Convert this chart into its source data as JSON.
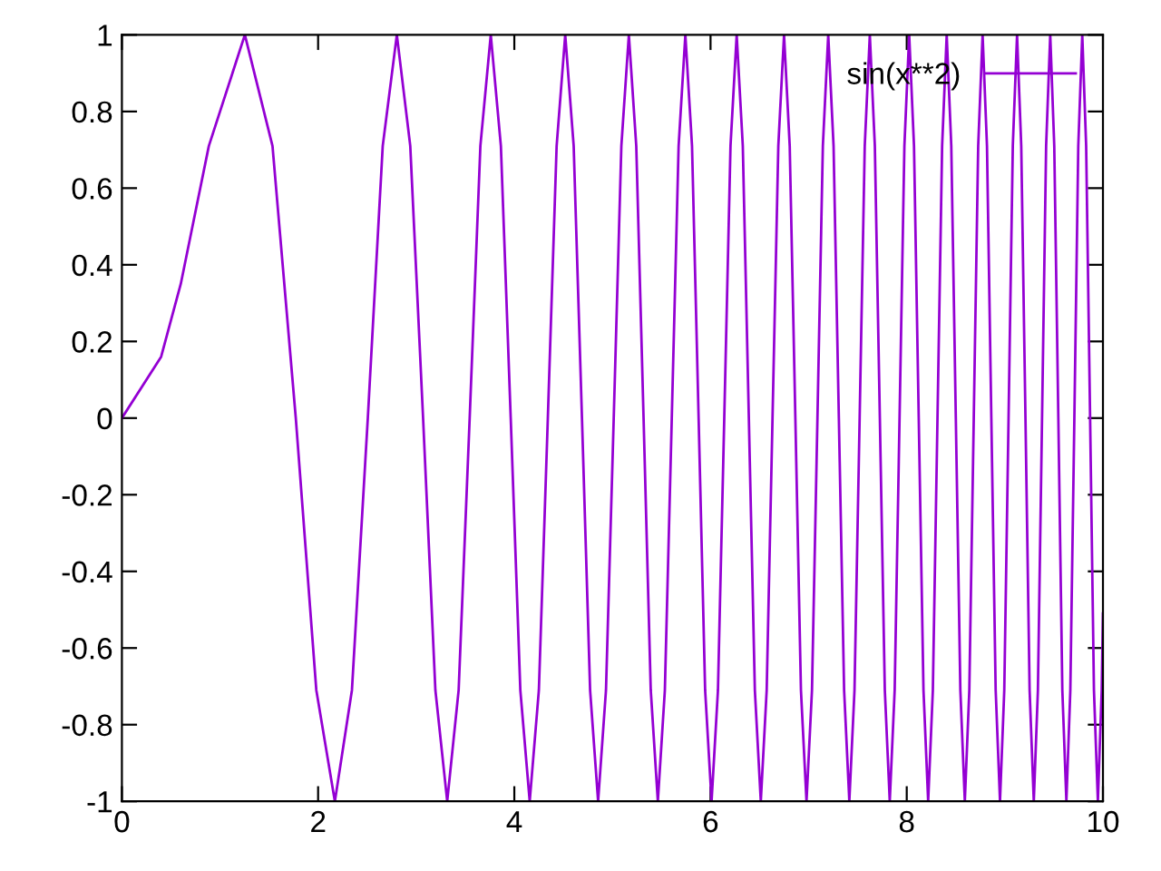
{
  "chart_data": {
    "type": "line",
    "x": [
      0,
      0.4,
      0.6,
      0.8862,
      1.2533,
      1.535,
      1.7725,
      1.9817,
      2.1708,
      2.3447,
      2.5066,
      2.6587,
      2.8025,
      2.9393,
      3.07,
      3.1954,
      3.316,
      3.4324,
      3.5449,
      3.654,
      3.7599,
      3.863,
      3.9633,
      4.0612,
      4.1568,
      4.2502,
      4.3416,
      4.4312,
      4.5189,
      4.605,
      4.6895,
      4.7725,
      4.8541,
      4.9343,
      5.0133,
      5.091,
      5.1675,
      5.243,
      5.3174,
      5.3907,
      5.463,
      5.5345,
      5.605,
      5.6747,
      5.7434,
      5.8114,
      5.8786,
      5.945,
      6.0107,
      6.0757,
      6.14,
      6.2036,
      6.2666,
      6.3289,
      6.3906,
      6.4518,
      6.5124,
      6.5724,
      6.6319,
      6.6909,
      6.7493,
      6.8072,
      6.8647,
      6.9216,
      6.9783,
      7.0342,
      7.0898,
      7.145,
      7.1998,
      7.2541,
      7.3081,
      7.3616,
      7.4148,
      7.4675,
      7.5199,
      7.5719,
      7.6236,
      7.6749,
      7.7259,
      7.7766,
      7.8268,
      7.877,
      7.9267,
      7.9761,
      8.025,
      8.074,
      8.1223,
      8.1706,
      8.2184,
      8.2662,
      8.3134,
      8.3607,
      8.4073,
      8.4541,
      8.5003,
      8.5465,
      8.5921,
      8.6379,
      8.6832,
      8.7283,
      8.7732,
      8.8179,
      8.8623,
      8.9065,
      8.9506,
      8.9942,
      9.0379,
      9.0811,
      9.1245,
      9.1672,
      9.2102,
      9.2525,
      9.2951,
      9.337,
      9.3792,
      9.4207,
      9.4627,
      9.5037,
      9.5453,
      9.586,
      9.6273,
      9.6676,
      9.7086,
      9.7485,
      9.7892,
      9.8288,
      9.8691,
      9.9083,
      9.9484,
      9.9873,
      10
    ],
    "series": [
      {
        "name": "sin(x**2)",
        "color": "#9400d3",
        "values": [
          0,
          0.16,
          0.35,
          0.71,
          1,
          0.71,
          0,
          -0.71,
          -1,
          -0.71,
          0,
          0.71,
          1,
          0.71,
          0,
          -0.71,
          -1,
          -0.71,
          0,
          0.71,
          1,
          0.71,
          0,
          -0.71,
          -1,
          -0.71,
          0,
          0.71,
          1,
          0.71,
          0,
          -0.71,
          -1,
          -0.71,
          0,
          0.71,
          1,
          0.71,
          0,
          -0.71,
          -1,
          -0.71,
          0,
          0.71,
          1,
          0.71,
          0,
          -0.71,
          -1,
          -0.71,
          0,
          0.71,
          1,
          0.71,
          0,
          -0.71,
          -1,
          -0.71,
          0,
          0.71,
          1,
          0.71,
          0,
          -0.71,
          -1,
          -0.71,
          0,
          0.71,
          1,
          0.71,
          0,
          -0.71,
          -1,
          -0.71,
          0,
          0.71,
          1,
          0.71,
          0,
          -0.71,
          -1,
          -0.71,
          0,
          0.71,
          1,
          0.71,
          0,
          -0.71,
          -1,
          -0.71,
          0,
          0.71,
          1,
          0.71,
          0,
          -0.71,
          -1,
          -0.71,
          0,
          0.71,
          1,
          0.71,
          0,
          -0.71,
          -1,
          -0.71,
          0,
          0.71,
          1,
          0.71,
          0,
          -0.71,
          -1,
          -0.71,
          0,
          0.71,
          1,
          0.71,
          0,
          -0.71,
          -1,
          -0.71,
          0,
          0.71,
          1,
          0.71,
          0,
          -0.71,
          -1,
          -0.71,
          -0.51
        ]
      }
    ],
    "xlim": [
      0,
      10
    ],
    "xticks": [
      0,
      2,
      4,
      6,
      8,
      10
    ],
    "ylim": [
      -1,
      1
    ],
    "yticks": [
      -1,
      -0.8,
      -0.6,
      -0.4,
      -0.2,
      0,
      0.2,
      0.4,
      0.6,
      0.8,
      1
    ],
    "grid": false,
    "legend": "top right",
    "line_style": "solid"
  }
}
